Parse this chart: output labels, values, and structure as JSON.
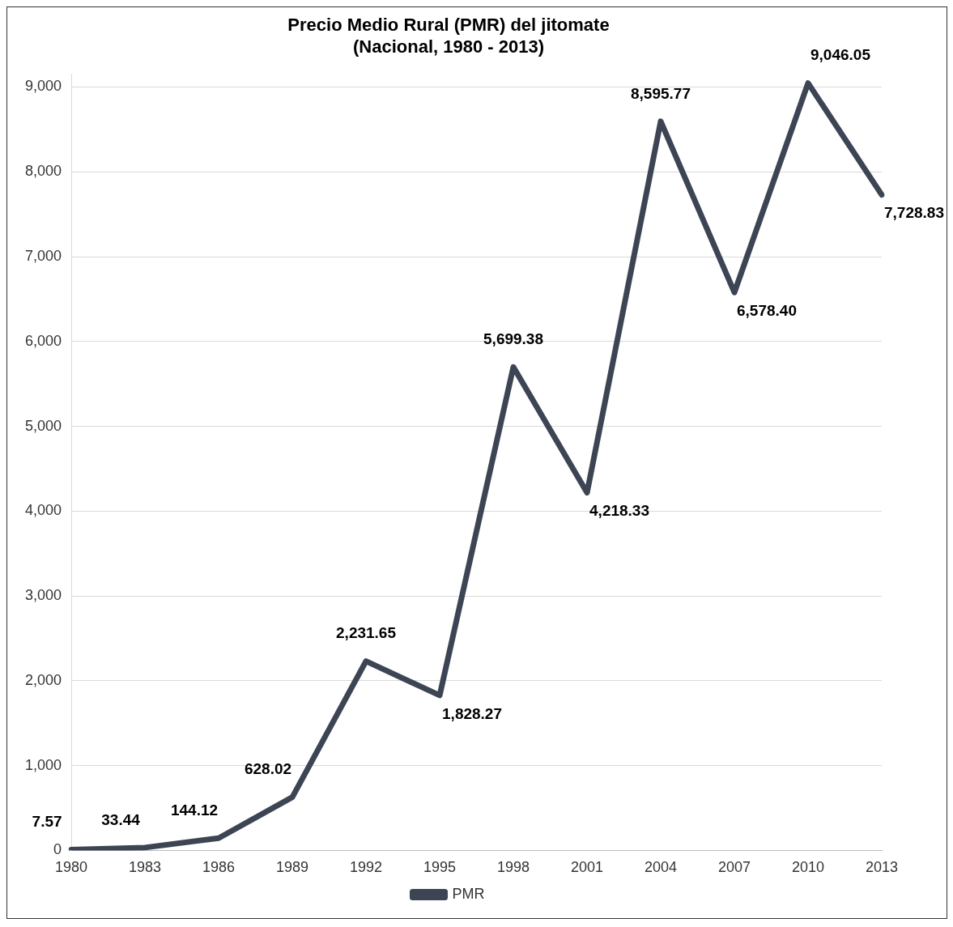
{
  "chart_data": {
    "type": "line",
    "title": "Precio Medio Rural (PMR) del jitomate\n(Nacional, 1980 - 2013)",
    "categories": [
      "1980",
      "1983",
      "1986",
      "1989",
      "1992",
      "1995",
      "1998",
      "2001",
      "2004",
      "2007",
      "2010",
      "2013"
    ],
    "series": [
      {
        "name": "PMR",
        "color": "#3d4555",
        "values": [
          7.57,
          33.44,
          144.12,
          628.02,
          2231.65,
          1828.27,
          5699.38,
          4218.33,
          8595.77,
          6578.4,
          9046.05,
          7728.83
        ]
      }
    ],
    "ylim": [
      0,
      9150
    ],
    "yticks": [
      {
        "value": 0,
        "label": "0"
      },
      {
        "value": 1000,
        "label": "1,000"
      },
      {
        "value": 2000,
        "label": "2,000"
      },
      {
        "value": 3000,
        "label": "3,000"
      },
      {
        "value": 4000,
        "label": "4,000"
      },
      {
        "value": 5000,
        "label": "5,000"
      },
      {
        "value": 6000,
        "label": "6,000"
      },
      {
        "value": 7000,
        "label": "7,000"
      },
      {
        "value": 8000,
        "label": "8,000"
      },
      {
        "value": 9000,
        "label": "9,000"
      }
    ],
    "value_labels": [
      "7.57",
      "33.44",
      "144.12",
      "628.02",
      "2,231.65",
      "1,828.27",
      "5,699.38",
      "4,218.33",
      "8,595.77",
      "6,578.40",
      "9,046.05",
      "7,728.83"
    ],
    "grid": "y",
    "legend": "bottom",
    "marker": "none",
    "line_style": "solid"
  }
}
